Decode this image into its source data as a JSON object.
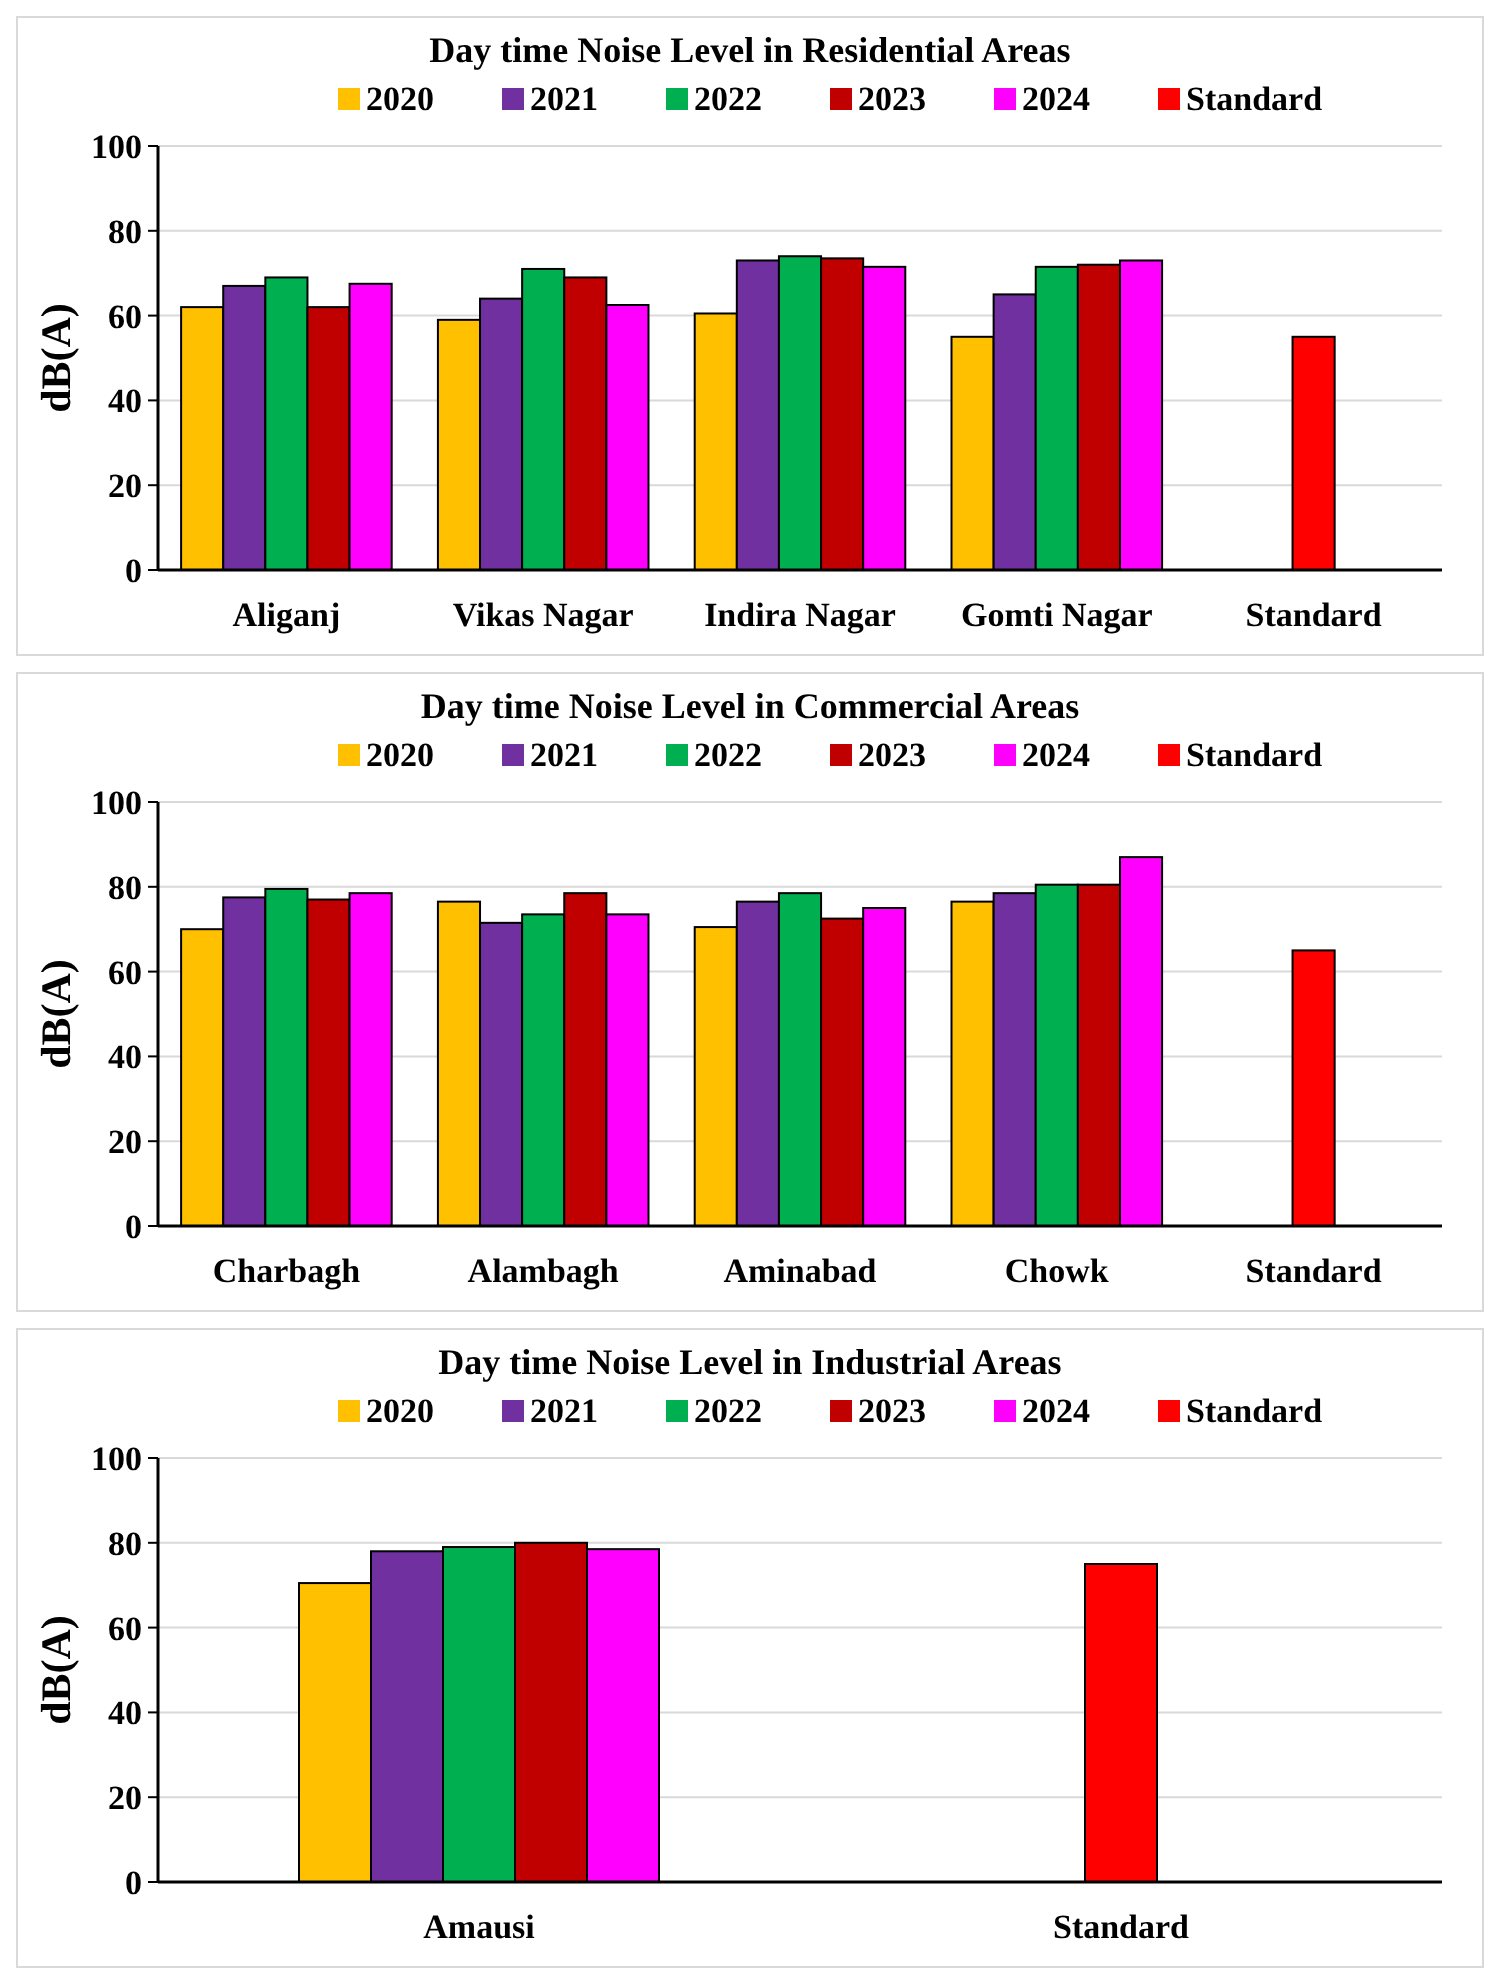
{
  "chart_data": [
    {
      "type": "bar",
      "title": "Day time Noise Level in Residential Areas",
      "ylabel": "dB(A)",
      "categories": [
        "Aliganj",
        "Vikas Nagar",
        "Indira Nagar",
        "Gomti Nagar",
        "Standard"
      ],
      "ylim": [
        0,
        100
      ],
      "yticks": [
        0,
        20,
        40,
        60,
        80,
        100
      ],
      "grid": "y",
      "legend": "top",
      "series": [
        {
          "name": "2020",
          "color": "#ffc000",
          "values": [
            62,
            59,
            60.5,
            55,
            null
          ]
        },
        {
          "name": "2021",
          "color": "#7030a0",
          "values": [
            67,
            64,
            73,
            65,
            null
          ]
        },
        {
          "name": "2022",
          "color": "#00b050",
          "values": [
            69,
            71,
            74,
            71.5,
            null
          ]
        },
        {
          "name": "2023",
          "color": "#c00000",
          "values": [
            62,
            69,
            73.5,
            72,
            null
          ]
        },
        {
          "name": "2024",
          "color": "#ff00ff",
          "values": [
            67.5,
            62.5,
            71.5,
            73,
            null
          ]
        },
        {
          "name": "Standard",
          "color": "#ff0000",
          "values": [
            null,
            null,
            null,
            null,
            55
          ]
        }
      ]
    },
    {
      "type": "bar",
      "title": "Day time Noise Level in Commercial Areas",
      "ylabel": "dB(A)",
      "categories": [
        "Charbagh",
        "Alambagh",
        "Aminabad",
        "Chowk",
        "Standard"
      ],
      "ylim": [
        0,
        100
      ],
      "yticks": [
        0,
        20,
        40,
        60,
        80,
        100
      ],
      "grid": "y",
      "legend": "top",
      "series": [
        {
          "name": "2020",
          "color": "#ffc000",
          "values": [
            70,
            76.5,
            70.5,
            76.5,
            null
          ]
        },
        {
          "name": "2021",
          "color": "#7030a0",
          "values": [
            77.5,
            71.5,
            76.5,
            78.5,
            null
          ]
        },
        {
          "name": "2022",
          "color": "#00b050",
          "values": [
            79.5,
            73.5,
            78.5,
            80.5,
            null
          ]
        },
        {
          "name": "2023",
          "color": "#c00000",
          "values": [
            77,
            78.5,
            72.5,
            80.5,
            null
          ]
        },
        {
          "name": "2024",
          "color": "#ff00ff",
          "values": [
            78.5,
            73.5,
            75,
            87,
            null
          ]
        },
        {
          "name": "Standard",
          "color": "#ff0000",
          "values": [
            null,
            null,
            null,
            null,
            65
          ]
        }
      ]
    },
    {
      "type": "bar",
      "title": "Day time Noise Level in Industrial Areas",
      "ylabel": "dB(A)",
      "categories": [
        "Amausi",
        "Standard"
      ],
      "ylim": [
        0,
        100
      ],
      "yticks": [
        0,
        20,
        40,
        60,
        80,
        100
      ],
      "grid": "y",
      "legend": "top",
      "series": [
        {
          "name": "2020",
          "color": "#ffc000",
          "values": [
            70.5,
            null
          ]
        },
        {
          "name": "2021",
          "color": "#7030a0",
          "values": [
            78,
            null
          ]
        },
        {
          "name": "2022",
          "color": "#00b050",
          "values": [
            79,
            null
          ]
        },
        {
          "name": "2023",
          "color": "#c00000",
          "values": [
            80,
            null
          ]
        },
        {
          "name": "2024",
          "color": "#ff00ff",
          "values": [
            78.5,
            null
          ]
        },
        {
          "name": "Standard",
          "color": "#ff0000",
          "values": [
            null,
            75
          ]
        }
      ]
    }
  ]
}
